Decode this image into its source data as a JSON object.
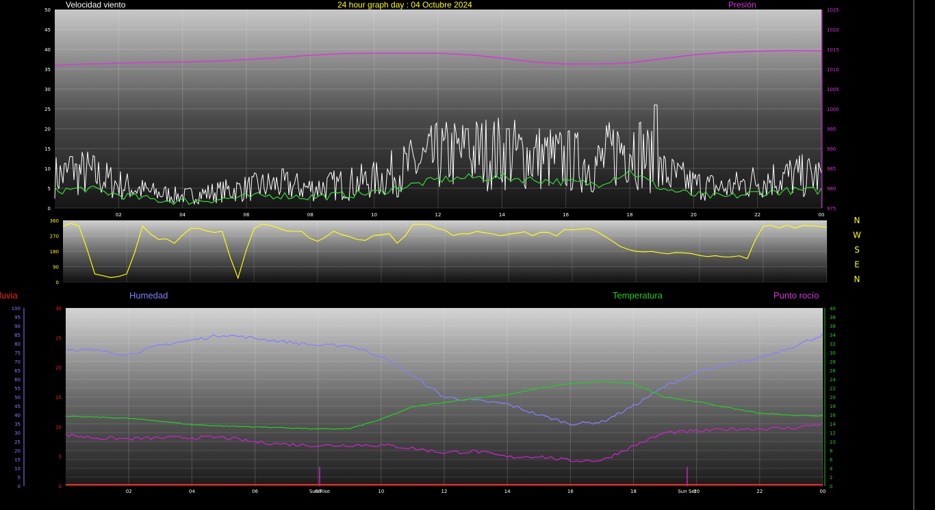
{
  "colors": {
    "background": "#000000",
    "wind": "#ffffff",
    "wind_avg": "#33dd33",
    "pressure": "#dd33dd",
    "direction": "#ffff00",
    "rain": "#ff2222",
    "humidity": "#8080ff",
    "temperature": "#22cc22",
    "dewpoint": "#cc22cc",
    "date_title": "#ffff00"
  },
  "header": {
    "wind_title": "Velocidad viento",
    "date_title": "24 hour graph day : 04 Octubre 2024",
    "pressure_title": "Presión"
  },
  "lower_header": {
    "rain": "lluvia",
    "humidity": "Humedad",
    "temperature": "Temperatura",
    "dewpoint": "Punto rocío"
  },
  "compass": [
    "N",
    "W",
    "S",
    "E",
    "N"
  ],
  "hour_labels": [
    "02",
    "04",
    "06",
    "08",
    "10",
    "12",
    "14",
    "16",
    "18",
    "20",
    "22",
    "00"
  ],
  "markers": {
    "sunrise": "Sun Rise",
    "sunset": "Sun Set"
  },
  "chart_data": [
    {
      "type": "line",
      "title": "Velocidad viento",
      "y_ticks": [
        0,
        5,
        10,
        15,
        20,
        25,
        30,
        35,
        40,
        45,
        50
      ],
      "ylim": [
        0,
        50
      ],
      "y2_ticks": [
        975,
        980,
        985,
        990,
        995,
        1000,
        1005,
        1010,
        1015,
        1020,
        1025
      ],
      "y2lim": [
        975,
        1025
      ],
      "hours": [
        0,
        1,
        2,
        3,
        4,
        5,
        6,
        7,
        8,
        9,
        10,
        11,
        12,
        13,
        14,
        15,
        16,
        17,
        18,
        19,
        20,
        21,
        22,
        23,
        24
      ],
      "series": [
        {
          "name": "Velocidad viento",
          "axis": "left",
          "values": [
            8,
            9,
            6,
            4,
            3,
            4,
            5,
            6,
            5,
            6,
            7,
            10,
            13,
            14,
            14,
            13,
            12,
            11,
            17,
            9,
            6,
            5,
            7,
            8,
            8
          ]
        },
        {
          "name": "Presión",
          "axis": "right",
          "values": [
            1011,
            1011.3,
            1011.5,
            1011.7,
            1011.8,
            1012,
            1012.4,
            1012.9,
            1013.5,
            1013.9,
            1014,
            1014,
            1014,
            1013.6,
            1012.8,
            1011.8,
            1011.3,
            1011.3,
            1011.6,
            1012.6,
            1013.6,
            1014.2,
            1014.5,
            1014.7,
            1014.6
          ]
        }
      ],
      "gust_peaks": [
        {
          "hour": 0.5,
          "value": 13
        },
        {
          "hour": 12.9,
          "value": 20
        },
        {
          "hour": 14.2,
          "value": 20
        },
        {
          "hour": 18.8,
          "value": 26
        }
      ]
    },
    {
      "type": "line",
      "title": "Dirección viento",
      "y_ticks": [
        0,
        90,
        180,
        270,
        360
      ],
      "ylim": [
        0,
        360
      ],
      "hours": [
        0,
        0.5,
        1,
        1.5,
        2,
        2.5,
        3,
        3.5,
        4,
        4.5,
        5,
        5.5,
        6,
        6.5,
        7,
        7.5,
        8,
        8.5,
        9,
        9.5,
        10,
        10.5,
        11,
        11.5,
        12,
        12.5,
        13,
        13.5,
        14,
        14.5,
        15,
        15.5,
        16,
        16.5,
        17,
        17.5,
        18,
        18.5,
        19,
        19.5,
        20,
        20.5,
        21,
        21.5,
        22,
        22.5,
        23,
        23.5,
        24
      ],
      "series": [
        {
          "name": "Dirección",
          "values": [
            330,
            340,
            60,
            30,
            50,
            330,
            240,
            240,
            310,
            310,
            300,
            30,
            320,
            320,
            310,
            290,
            240,
            300,
            280,
            240,
            290,
            240,
            330,
            330,
            290,
            290,
            300,
            290,
            290,
            280,
            290,
            280,
            300,
            300,
            280,
            210,
            190,
            170,
            160,
            160,
            170,
            140,
            140,
            140,
            330,
            330,
            330,
            330,
            330
          ]
        }
      ]
    },
    {
      "type": "line",
      "y_ticks_rain": [
        0,
        5,
        10,
        15,
        20,
        25,
        30
      ],
      "ylim_rain": [
        0,
        30
      ],
      "y_ticks_humidity": [
        0,
        5,
        10,
        15,
        20,
        25,
        30,
        35,
        40,
        45,
        50,
        55,
        60,
        65,
        70,
        75,
        80,
        85,
        90,
        95,
        100
      ],
      "ylim_humidity": [
        0,
        100
      ],
      "y_ticks_temp": [
        0,
        2,
        4,
        6,
        8,
        10,
        12,
        14,
        16,
        18,
        20,
        22,
        24,
        26,
        28,
        30,
        32,
        34,
        36,
        38,
        40
      ],
      "ylim_temp": [
        0,
        40
      ],
      "hours": [
        0,
        1,
        2,
        3,
        4,
        5,
        6,
        7,
        8,
        9,
        10,
        11,
        12,
        13,
        14,
        15,
        16,
        17,
        18,
        19,
        20,
        21,
        22,
        23,
        24
      ],
      "series": [
        {
          "name": "lluvia",
          "axis": "rain",
          "values": [
            0,
            0,
            0,
            0,
            0,
            0,
            0,
            0,
            0,
            0,
            0,
            0,
            0,
            0,
            0,
            0,
            0,
            0,
            0,
            0,
            0,
            0,
            0,
            0,
            0
          ]
        },
        {
          "name": "Humedad",
          "axis": "humidity",
          "values": [
            77,
            76,
            74,
            79,
            82,
            85,
            83,
            81,
            79,
            79,
            73,
            62,
            50,
            48,
            46,
            40,
            35,
            36,
            45,
            56,
            64,
            68,
            72,
            78,
            85
          ]
        },
        {
          "name": "Temperatura",
          "axis": "temp",
          "values": [
            15.6,
            15.5,
            15.2,
            14.6,
            13.8,
            13.5,
            13.3,
            13.1,
            12.8,
            12.9,
            15.0,
            17.8,
            18.8,
            19.8,
            20.5,
            22.0,
            23.0,
            23.5,
            23.0,
            20.0,
            19.0,
            17.6,
            16.4,
            15.9,
            15.8
          ]
        },
        {
          "name": "Punto rocío",
          "axis": "temp",
          "values": [
            11.5,
            10.8,
            10.6,
            10.8,
            10.9,
            10.9,
            9.9,
            9.4,
            9.1,
            9.2,
            9.2,
            8.5,
            7.5,
            7.8,
            6.5,
            6.7,
            5.7,
            5.8,
            9.0,
            12.0,
            12.3,
            12.8,
            12.9,
            13.0,
            14.0
          ]
        }
      ],
      "sunrise_hour": 8.05,
      "sunset_hour": 19.7
    }
  ]
}
